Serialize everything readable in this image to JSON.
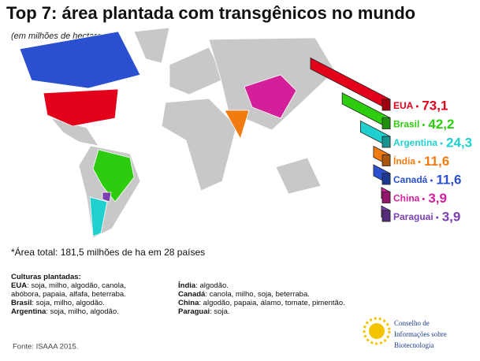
{
  "chart_data": {
    "type": "bar",
    "title": "Top 7: área plantada com transgênicos no mundo",
    "subtitle": "(em milhões de hectares*)",
    "categories": [
      "EUA",
      "Brasil",
      "Argentina",
      "Índia",
      "Canadá",
      "China",
      "Paraguai"
    ],
    "values": [
      73.1,
      42.2,
      24.3,
      11.6,
      11.6,
      3.9,
      3.9
    ],
    "value_labels": [
      "73,1",
      "42,2",
      "24,3",
      "11,6",
      "11,6",
      "3,9",
      "3,9"
    ],
    "colors": [
      "#e2001a",
      "#2ecc0f",
      "#1fd0cf",
      "#f07b10",
      "#2a50d0",
      "#d3209a",
      "#7b3fb3"
    ],
    "footnote": "*Área total: 181,5 milhões de ha em 28 países",
    "crops": {
      "title": "Culturas plantadas:",
      "left": [
        {
          "country": "EUA",
          "text": ": soja, milho, algodão, canola,"
        },
        {
          "country": "",
          "text": "abóbora, papaia, alfafa, beterraba."
        },
        {
          "country": "Brasil",
          "text": ": soja, milho, algodão."
        },
        {
          "country": "Argentina",
          "text": ": soja, milho, algodão."
        }
      ],
      "right": [
        {
          "country": "Índia",
          "text": ": algodão."
        },
        {
          "country": "Canadá",
          "text": ": canola, milho, soja, beterraba."
        },
        {
          "country": "China",
          "text": ": algodão, papaia, álamo, tomate, pimentão."
        },
        {
          "country": "Paraguai",
          "text": ": soja."
        }
      ]
    },
    "source": "Fonte: ISAAA 2015.",
    "logo": [
      "Conselho de",
      "Informações sobre",
      "Biotecnologia"
    ]
  }
}
